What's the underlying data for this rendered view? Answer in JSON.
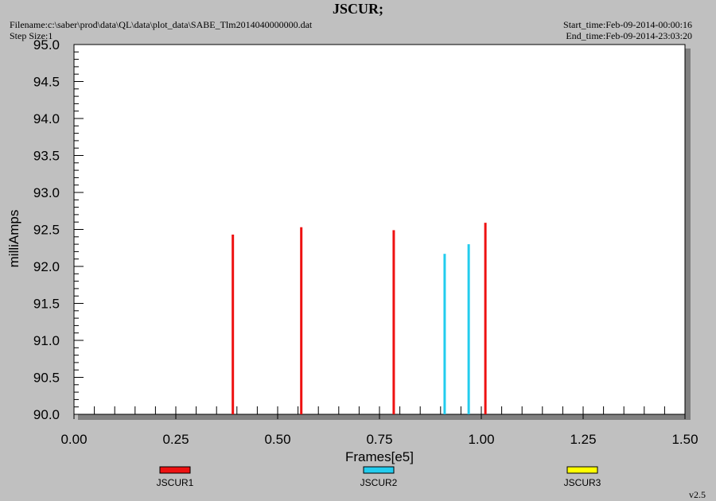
{
  "header": {
    "title": "JSCUR;",
    "filename": "Filename:c:\\saber\\prod\\data\\QL\\data\\plot_data\\SABE_Tlm2014040000000.dat",
    "step_size": "Step Size:1",
    "start_time": "Start_time:Feb-09-2014-00:00:16",
    "end_time": "End_time:Feb-09-2014-23:03:20"
  },
  "version": "v2.5",
  "chart_data": {
    "type": "bar",
    "title": "JSCUR;",
    "xlabel": "Frames[e5]",
    "ylabel": "milliAmps",
    "xlim": [
      0.0,
      1.5
    ],
    "ylim": [
      90.0,
      95.0
    ],
    "x_ticks": [
      "0.00",
      "0.25",
      "0.50",
      "0.75",
      "1.00",
      "1.25",
      "1.50"
    ],
    "y_ticks": [
      "90.0",
      "90.5",
      "91.0",
      "91.5",
      "92.0",
      "92.5",
      "93.0",
      "93.5",
      "94.0",
      "94.5",
      "95.0"
    ],
    "grid": false,
    "legend_position": "bottom",
    "series": [
      {
        "name": "JSCUR1",
        "color": "#ee1111",
        "points": [
          {
            "x": 0.39,
            "y": 92.43
          },
          {
            "x": 0.558,
            "y": 92.53
          },
          {
            "x": 0.785,
            "y": 92.49
          },
          {
            "x": 1.01,
            "y": 92.59
          }
        ]
      },
      {
        "name": "JSCUR2",
        "color": "#22ccee",
        "points": [
          {
            "x": 0.91,
            "y": 92.17
          },
          {
            "x": 0.969,
            "y": 92.3
          }
        ]
      },
      {
        "name": "JSCUR3",
        "color": "#ffff00",
        "points": []
      }
    ]
  }
}
